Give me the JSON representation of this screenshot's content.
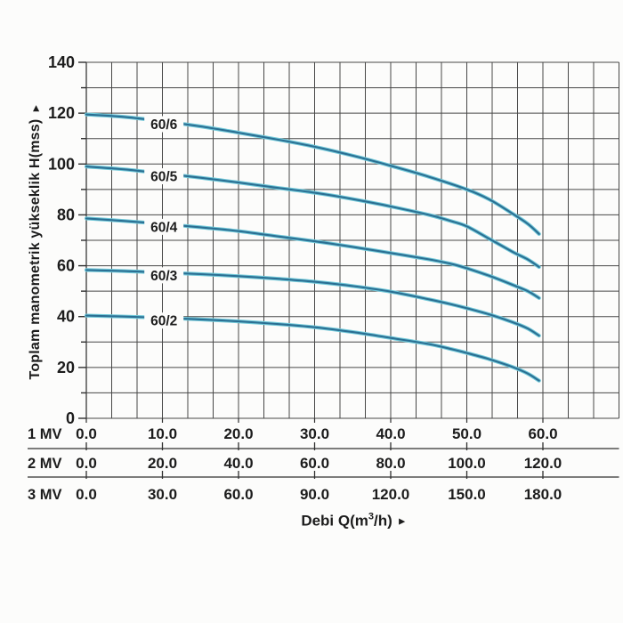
{
  "figure": {
    "y_axis_title": "Toplam manometrik yükseklik H(mss)",
    "y_axis_arrow": "►",
    "x_axis_title_pre": "Debi Q(m",
    "x_axis_title_sup": "3",
    "x_axis_title_post": "/h)",
    "x_axis_arrow": "►"
  },
  "chart_data": {
    "type": "line",
    "title": "",
    "ylabel": "Toplam manometrik yükseklik H(mss)",
    "xlabel": "Debi Q(m3/h)",
    "ylim": [
      0,
      140
    ],
    "y_major_tick_step": 20,
    "y_minor_tick_step": 10,
    "y_tick_labels": [
      "0",
      "20",
      "40",
      "60",
      "80",
      "100",
      "120",
      "140"
    ],
    "grid": "on",
    "x_scale_rows": [
      {
        "label": "1 MV",
        "tick_labels": [
          "0.0",
          "10.0",
          "20.0",
          "30.0",
          "40.0",
          "50.0",
          "60.0"
        ]
      },
      {
        "label": "2 MV",
        "tick_labels": [
          "0.0",
          "20.0",
          "40.0",
          "60.0",
          "80.0",
          "100.0",
          "120.0"
        ]
      },
      {
        "label": "3 MV",
        "tick_labels": [
          "0.0",
          "30.0",
          "60.0",
          "90.0",
          "120.0",
          "150.0",
          "180.0"
        ]
      }
    ],
    "series": [
      {
        "name": "60/6",
        "points_q_h": [
          [
            0,
            119.5
          ],
          [
            5,
            118.5
          ],
          [
            10,
            116.8
          ],
          [
            15,
            114.8
          ],
          [
            20,
            112.3
          ],
          [
            25,
            109.7
          ],
          [
            30,
            106.8
          ],
          [
            35,
            103.3
          ],
          [
            40,
            99.3
          ],
          [
            45,
            95.0
          ],
          [
            50,
            90.0
          ],
          [
            53,
            86.0
          ],
          [
            56,
            80.5
          ],
          [
            58,
            76.5
          ],
          [
            59.5,
            72.5
          ]
        ]
      },
      {
        "name": "60/5",
        "points_q_h": [
          [
            0,
            99.0
          ],
          [
            5,
            97.9
          ],
          [
            10,
            96.3
          ],
          [
            15,
            94.6
          ],
          [
            20,
            92.7
          ],
          [
            25,
            90.7
          ],
          [
            30,
            88.7
          ],
          [
            35,
            86.2
          ],
          [
            40,
            83.3
          ],
          [
            45,
            80.0
          ],
          [
            48,
            77.5
          ],
          [
            50,
            75.5
          ],
          [
            53,
            70.5
          ],
          [
            56,
            65.5
          ],
          [
            58,
            62.5
          ],
          [
            59.5,
            59.5
          ]
        ]
      },
      {
        "name": "60/4",
        "points_q_h": [
          [
            0,
            78.6
          ],
          [
            5,
            77.6
          ],
          [
            10,
            76.4
          ],
          [
            15,
            75.1
          ],
          [
            20,
            73.6
          ],
          [
            25,
            71.6
          ],
          [
            30,
            69.6
          ],
          [
            35,
            67.4
          ],
          [
            40,
            65.0
          ],
          [
            45,
            62.5
          ],
          [
            48,
            60.7
          ],
          [
            50,
            59.0
          ],
          [
            53,
            56.0
          ],
          [
            56,
            52.5
          ],
          [
            58,
            50.0
          ],
          [
            59.5,
            47.3
          ]
        ]
      },
      {
        "name": "60/3",
        "points_q_h": [
          [
            0,
            58.3
          ],
          [
            5,
            57.9
          ],
          [
            10,
            57.3
          ],
          [
            15,
            56.7
          ],
          [
            20,
            55.9
          ],
          [
            25,
            54.9
          ],
          [
            30,
            53.7
          ],
          [
            35,
            52.0
          ],
          [
            40,
            49.8
          ],
          [
            45,
            46.8
          ],
          [
            48,
            44.8
          ],
          [
            50,
            43.3
          ],
          [
            53,
            40.8
          ],
          [
            56,
            37.8
          ],
          [
            58,
            35.3
          ],
          [
            59.5,
            32.5
          ]
        ]
      },
      {
        "name": "60/2",
        "points_q_h": [
          [
            0,
            40.4
          ],
          [
            5,
            40.0
          ],
          [
            10,
            39.5
          ],
          [
            15,
            38.9
          ],
          [
            20,
            38.1
          ],
          [
            25,
            37.1
          ],
          [
            30,
            35.8
          ],
          [
            35,
            33.9
          ],
          [
            40,
            31.6
          ],
          [
            45,
            29.2
          ],
          [
            48,
            27.2
          ],
          [
            50,
            25.7
          ],
          [
            53,
            23.2
          ],
          [
            56,
            20.2
          ],
          [
            58,
            17.6
          ],
          [
            59.5,
            14.8
          ]
        ]
      }
    ],
    "colors": {
      "curve_core": "#2b6f93",
      "curve_halo": "#72c9d9",
      "grid": "#474747",
      "axis": "#2f2f2f",
      "text": "#1c1c1c",
      "plot_background": "#fcfcfb",
      "page_background": "#fcfcfb"
    }
  }
}
